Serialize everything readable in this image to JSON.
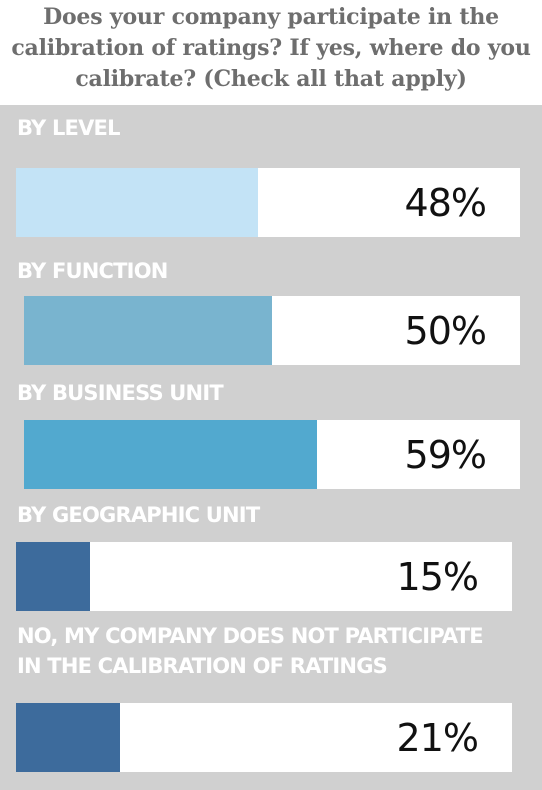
{
  "chart_data": {
    "type": "bar",
    "orientation": "horizontal",
    "title": "Does your company participate in the calibration of ratings? If yes, where do you calibrate? (Check all that apply)",
    "categories": [
      "BY LEVEL",
      "BY FUNCTION",
      "BY BUSINESS UNIT",
      "BY GEOGRAPHIC UNIT",
      "NO, MY COMPANY DOES NOT PARTICIPATE IN THE CALIBRATION OF RATINGS"
    ],
    "values": [
      48,
      50,
      59,
      15,
      21
    ],
    "value_labels": [
      "48%",
      "50%",
      "59%",
      "15%",
      "21%"
    ],
    "xlim": [
      0,
      100
    ],
    "unit": "%",
    "bar_colors": [
      "#c3e3f6",
      "#79b4cf",
      "#52a9cf",
      "#3d6b9c",
      "#3d6b9c"
    ],
    "grid": false,
    "legend": "none"
  },
  "colors": {
    "title_text": "#6e6e6e",
    "panel_background": "#d0d0d0",
    "label_text": "#ffffff",
    "track": "#ffffff",
    "value_text": "#111111"
  }
}
